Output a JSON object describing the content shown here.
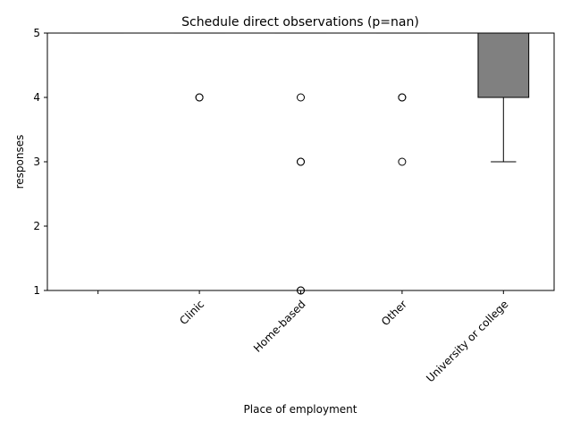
{
  "chart_data": {
    "type": "box",
    "title": "Schedule direct observations (p=nan)",
    "xlabel": "Place of employment",
    "ylabel": "responses",
    "ylim": [
      1,
      5
    ],
    "yticks": [
      1,
      2,
      3,
      4,
      5
    ],
    "categories": [
      "",
      "Clinic",
      "Home-based",
      "Other",
      "University or college"
    ],
    "boxes": [
      {
        "category": "",
        "q1": 5,
        "median": 5,
        "q3": 5,
        "whisker_low": 5,
        "whisker_high": 5,
        "outliers": []
      },
      {
        "category": "Clinic",
        "q1": 5,
        "median": 5,
        "q3": 5,
        "whisker_low": 5,
        "whisker_high": 5,
        "outliers": [
          4,
          4
        ]
      },
      {
        "category": "Home-based",
        "q1": 5,
        "median": 5,
        "q3": 5,
        "whisker_low": 5,
        "whisker_high": 5,
        "outliers": [
          4,
          3,
          3,
          1,
          1
        ]
      },
      {
        "category": "Other",
        "q1": 5,
        "median": 5,
        "q3": 5,
        "whisker_low": 5,
        "whisker_high": 5,
        "outliers": [
          4,
          4,
          3
        ]
      },
      {
        "category": "University or college",
        "q1": 4,
        "median": 5,
        "q3": 5,
        "whisker_low": 3,
        "whisker_high": 5,
        "outliers": []
      }
    ],
    "box_color": "#808080",
    "grid": false,
    "legend": "none"
  }
}
